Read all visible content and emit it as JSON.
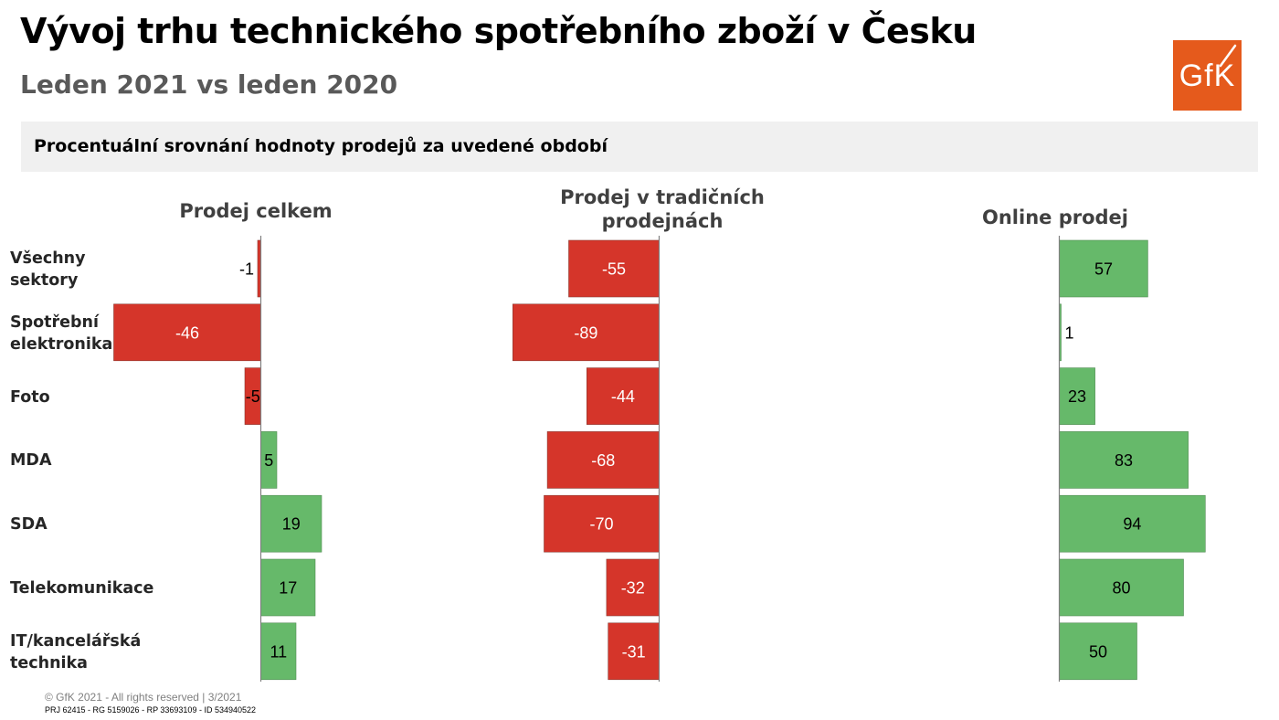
{
  "title": "Vývoj trhu technického spotřebního zboží v Česku",
  "subtitle": "Leden 2021 vs leden 2020",
  "logo": {
    "text": "GfK",
    "color": "#e55a1c"
  },
  "section_header": "Procentuální srovnání hodnoty prodejů za uvedené období",
  "colors": {
    "negative": "#d5352a",
    "positive": "#66b96a",
    "axis": "#808080"
  },
  "footer": {
    "copyright": "© GfK 2021 - All rights reserved | 3/2021",
    "ids": "PRJ 62415 - RG 5159026 - RP 33693109 - ID 534940522"
  },
  "chart_data": {
    "type": "bar",
    "orientation": "horizontal",
    "categories": [
      "Všechny sektory",
      "Spotřební elektronika",
      "Foto",
      "MDA",
      "SDA",
      "Telekomunikace",
      "IT/kancelářská technika"
    ],
    "series": [
      {
        "name": "Prodej celkem",
        "values": [
          -1,
          -46,
          -5,
          5,
          19,
          17,
          11
        ]
      },
      {
        "name": "Prodej v tradičních prodejnách",
        "values": [
          -55,
          -89,
          -44,
          -68,
          -70,
          -32,
          -31
        ]
      },
      {
        "name": "Online prodej",
        "values": [
          57,
          1,
          23,
          83,
          94,
          80,
          50
        ]
      }
    ]
  }
}
